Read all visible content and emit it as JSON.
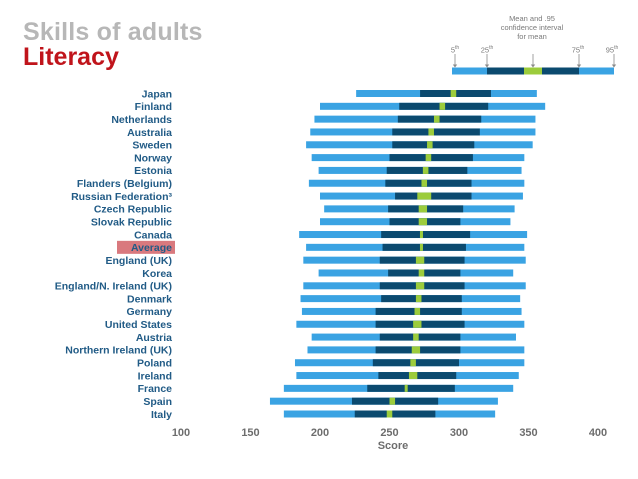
{
  "title": "Skills of adults",
  "subtitle": "Literacy",
  "legend": {
    "p5": "5th",
    "p25": "25th",
    "mean_ci": "Mean and .95 confidence interval for mean",
    "p75": "75th",
    "p95": "95th"
  },
  "colors": {
    "outer": "#3aa3e3",
    "inner": "#0b4a6f",
    "mean": "#9ccc3c",
    "highlight": "#d9797e",
    "label": "#215b86",
    "title_gray": "#b7b7b7",
    "title_red": "#c0141b"
  },
  "chart_data": {
    "type": "bar",
    "orientation": "horizontal",
    "xlabel": "Score",
    "xlim": [
      100,
      400
    ],
    "xticks": [
      100,
      150,
      200,
      250,
      300,
      350,
      400
    ],
    "highlight_category": "Average",
    "categories": [
      "Japan",
      "Finland",
      "Netherlands",
      "Australia",
      "Sweden",
      "Norway",
      "Estonia",
      "Flanders (Belgium)",
      "Russian Federation³",
      "Czech Republic",
      "Slovak Republic",
      "Canada",
      "Average",
      "England (UK)",
      "Korea",
      "England/N. Ireland (UK)",
      "Denmark",
      "Germany",
      "United States",
      "Austria",
      "Northern Ireland (UK)",
      "Poland",
      "Ireland",
      "France",
      "Spain",
      "Italy"
    ],
    "series": [
      {
        "name": "5th",
        "values": [
          226,
          200,
          196,
          193,
          190,
          194,
          199,
          192,
          200,
          203,
          200,
          185,
          190,
          188,
          199,
          188,
          186,
          187,
          183,
          194,
          191,
          182,
          183,
          174,
          164,
          174
        ]
      },
      {
        "name": "25th",
        "values": [
          272,
          257,
          256,
          252,
          252,
          250,
          248,
          247,
          254,
          249,
          250,
          244,
          245,
          243,
          249,
          243,
          244,
          240,
          240,
          243,
          240,
          238,
          242,
          234,
          223,
          225
        ]
      },
      {
        "name": "mean",
        "values": [
          296,
          288,
          284,
          280,
          279,
          278,
          276,
          275,
          275,
          274,
          274,
          273,
          273,
          272,
          273,
          272,
          271,
          270,
          270,
          269,
          269,
          267,
          267,
          262,
          252,
          250
        ]
      },
      {
        "name": "mean_ci_low",
        "values": [
          294,
          286,
          282,
          278,
          277,
          276,
          274,
          273,
          270,
          271,
          271,
          272,
          272,
          269,
          271,
          269,
          269,
          268,
          267,
          267,
          266,
          265,
          264,
          261,
          250,
          248
        ]
      },
      {
        "name": "mean_ci_high",
        "values": [
          298,
          290,
          286,
          282,
          281,
          280,
          278,
          277,
          280,
          277,
          277,
          274,
          274,
          275,
          275,
          275,
          273,
          272,
          273,
          271,
          272,
          269,
          270,
          263,
          254,
          252
        ]
      },
      {
        "name": "75th",
        "values": [
          323,
          321,
          316,
          315,
          311,
          310,
          306,
          309,
          309,
          303,
          301,
          308,
          305,
          304,
          301,
          304,
          302,
          302,
          304,
          301,
          301,
          300,
          298,
          297,
          285,
          283
        ]
      },
      {
        "name": "95th",
        "values": [
          356,
          362,
          355,
          355,
          353,
          347,
          345,
          347,
          346,
          340,
          337,
          349,
          347,
          348,
          339,
          348,
          344,
          345,
          347,
          341,
          347,
          347,
          343,
          339,
          328,
          326
        ]
      }
    ]
  }
}
